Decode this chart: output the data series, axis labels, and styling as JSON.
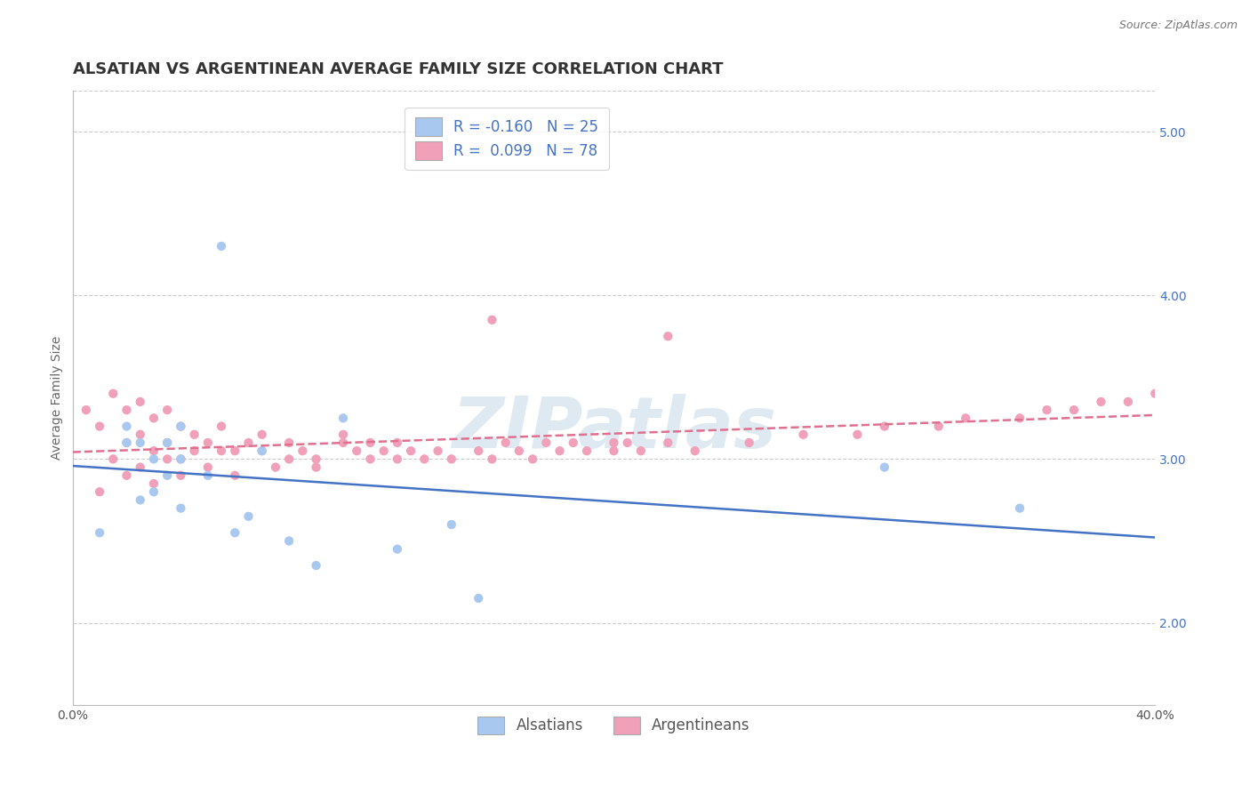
{
  "title": "ALSATIAN VS ARGENTINEAN AVERAGE FAMILY SIZE CORRELATION CHART",
  "source_text": "Source: ZipAtlas.com",
  "ylabel": "Average Family Size",
  "xlim": [
    0.0,
    0.4
  ],
  "ylim": [
    1.5,
    5.25
  ],
  "yticks": [
    2.0,
    3.0,
    4.0,
    5.0
  ],
  "xticks": [
    0.0,
    0.1,
    0.2,
    0.3,
    0.4
  ],
  "xticklabels": [
    "0.0%",
    "",
    "",
    "",
    "40.0%"
  ],
  "blue_color": "#A8C8F0",
  "pink_color": "#F0A0B8",
  "trendline_blue": "#4472C4",
  "trendline_pink": "#E07090",
  "legend_label_blue": "Alsatians",
  "legend_label_pink": "Argentineans",
  "R_blue": -0.16,
  "N_blue": 25,
  "R_pink": 0.099,
  "N_pink": 78,
  "blue_x": [
    0.01,
    0.02,
    0.025,
    0.03,
    0.03,
    0.035,
    0.035,
    0.04,
    0.04,
    0.04,
    0.05,
    0.055,
    0.06,
    0.065,
    0.07,
    0.08,
    0.09,
    0.1,
    0.12,
    0.14,
    0.15,
    0.3,
    0.35,
    0.02,
    0.025
  ],
  "blue_y": [
    2.55,
    3.1,
    2.75,
    2.8,
    3.0,
    2.9,
    3.1,
    2.7,
    3.0,
    3.2,
    2.9,
    4.3,
    2.55,
    2.65,
    3.05,
    2.5,
    2.35,
    3.25,
    2.45,
    2.6,
    2.15,
    2.95,
    2.7,
    3.2,
    3.1
  ],
  "pink_x": [
    0.005,
    0.01,
    0.01,
    0.015,
    0.015,
    0.02,
    0.02,
    0.02,
    0.025,
    0.025,
    0.025,
    0.03,
    0.03,
    0.03,
    0.035,
    0.035,
    0.035,
    0.04,
    0.04,
    0.04,
    0.045,
    0.045,
    0.05,
    0.05,
    0.055,
    0.055,
    0.06,
    0.06,
    0.065,
    0.07,
    0.07,
    0.075,
    0.08,
    0.08,
    0.085,
    0.09,
    0.09,
    0.1,
    0.1,
    0.105,
    0.11,
    0.11,
    0.115,
    0.12,
    0.12,
    0.125,
    0.13,
    0.135,
    0.14,
    0.15,
    0.155,
    0.16,
    0.165,
    0.17,
    0.175,
    0.18,
    0.185,
    0.19,
    0.2,
    0.2,
    0.205,
    0.21,
    0.22,
    0.23,
    0.25,
    0.27,
    0.29,
    0.3,
    0.32,
    0.33,
    0.35,
    0.36,
    0.37,
    0.38,
    0.39,
    0.4,
    0.155,
    0.22
  ],
  "pink_y": [
    3.3,
    2.8,
    3.2,
    3.0,
    3.4,
    2.9,
    3.1,
    3.3,
    2.95,
    3.15,
    3.35,
    2.85,
    3.05,
    3.25,
    3.0,
    3.1,
    3.3,
    2.9,
    3.0,
    3.2,
    3.05,
    3.15,
    2.95,
    3.1,
    3.05,
    3.2,
    2.9,
    3.05,
    3.1,
    3.05,
    3.15,
    2.95,
    3.0,
    3.1,
    3.05,
    2.95,
    3.0,
    3.1,
    3.15,
    3.05,
    3.0,
    3.1,
    3.05,
    3.0,
    3.1,
    3.05,
    3.0,
    3.05,
    3.0,
    3.05,
    3.0,
    3.1,
    3.05,
    3.0,
    3.1,
    3.05,
    3.1,
    3.05,
    3.1,
    3.05,
    3.1,
    3.05,
    3.1,
    3.05,
    3.1,
    3.15,
    3.15,
    3.2,
    3.2,
    3.25,
    3.25,
    3.3,
    3.3,
    3.35,
    3.35,
    3.4,
    3.85,
    3.75
  ],
  "watermark": "ZIPatlas",
  "watermark_color": "#C5D8E8",
  "grid_color": "#CCCCCC",
  "background_color": "#FFFFFF",
  "title_fontsize": 13,
  "ylabel_fontsize": 10,
  "tick_fontsize": 10,
  "legend_fontsize": 12
}
